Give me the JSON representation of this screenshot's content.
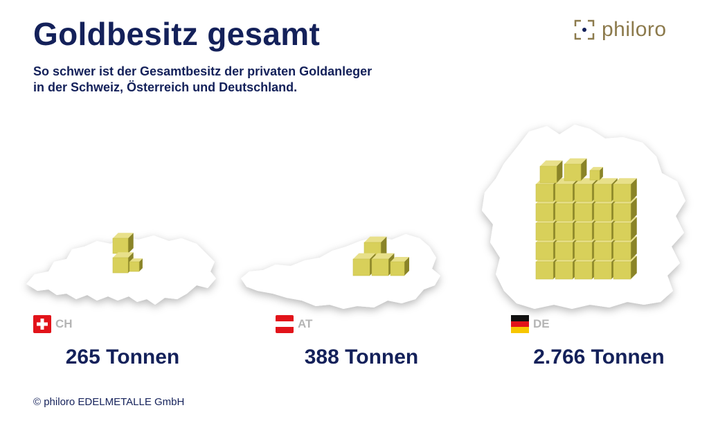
{
  "title": "Goldbesitz gesamt",
  "subtitle_line1": "So schwer ist der Gesamtbesitz der privaten Goldanleger",
  "subtitle_line2": "in der Schweiz, Österreich und Deutschland.",
  "logo": {
    "text": "philoro",
    "color": "#8c7a4c"
  },
  "copyright": "© philoro EDELMETALLE GmbH",
  "colors": {
    "navy": "#14215a",
    "gold_top": "#e8e08a",
    "gold_front": "#d8d05a",
    "gold_side": "#8a8428",
    "map": "#ffffff",
    "label_grey": "#b5b5b5"
  },
  "chart_data": {
    "type": "pictogram",
    "title": "Goldbesitz gesamt",
    "unit": "Tonnen",
    "categories": [
      "CH",
      "AT",
      "DE"
    ],
    "values": [
      265,
      388,
      2766
    ],
    "value_labels": [
      "265 Tonnen",
      "388 Tonnen",
      "2.766 Tonnen"
    ],
    "flags": [
      "flag-switzerland",
      "flag-austria",
      "flag-germany"
    ]
  },
  "countries": [
    {
      "code": "CH",
      "label": "265 Tonnen"
    },
    {
      "code": "AT",
      "label": "388 Tonnen"
    },
    {
      "code": "DE",
      "label": "2.766 Tonnen"
    }
  ]
}
